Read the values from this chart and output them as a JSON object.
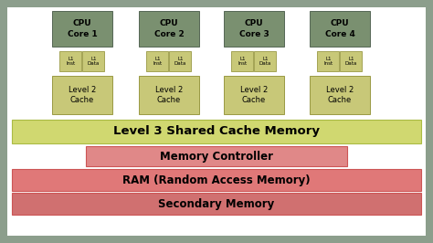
{
  "background_color": "#8c9e8c",
  "main_bg": "#ffffff",
  "cpu_color": "#7a9070",
  "l1_color": "#c8c878",
  "l2_color": "#c8c878",
  "l3_color": "#d0d870",
  "mem_ctrl_color": "#e08888",
  "ram_color": "#e07878",
  "secondary_color": "#d07070",
  "cores": [
    "CPU\nCore 1",
    "CPU\nCore 2",
    "CPU\nCore 3",
    "CPU\nCore 4"
  ],
  "l2_label": "Level 2\nCache",
  "l3_label": "Level 3 Shared Cache Memory",
  "mem_ctrl_label": "Memory Controller",
  "ram_label": "RAM (Random Access Memory)",
  "secondary_label": "Secondary Memory"
}
